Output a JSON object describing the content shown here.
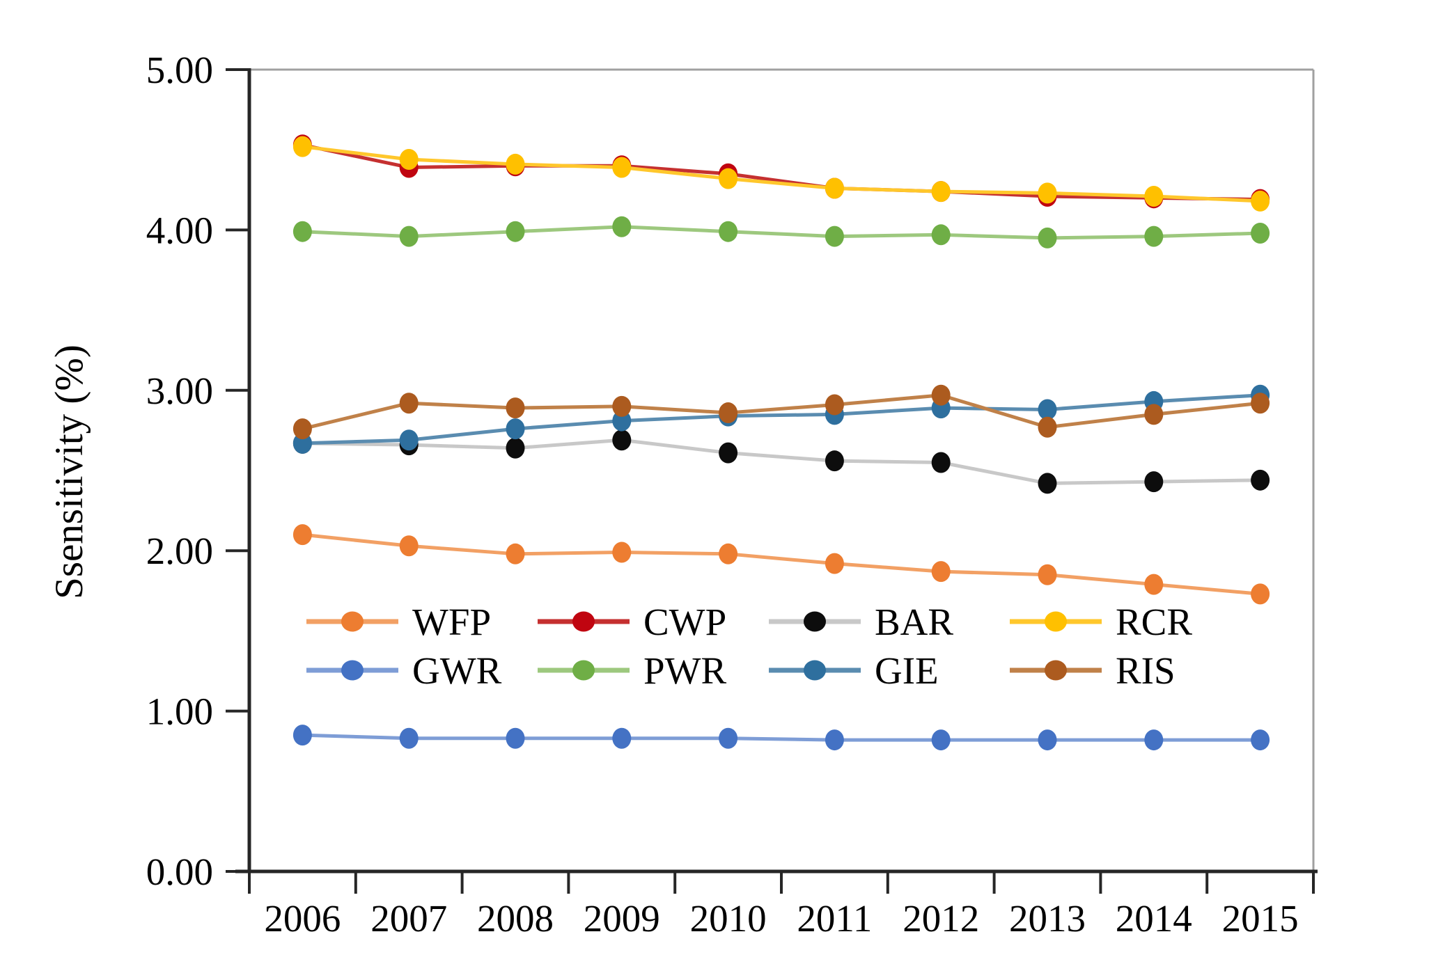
{
  "chart_data": {
    "type": "line",
    "title": "",
    "ylabel": "Ssensitivity (%)",
    "xlabel": "",
    "categories": [
      "2006",
      "2007",
      "2008",
      "2009",
      "2010",
      "2011",
      "2012",
      "2013",
      "2014",
      "2015"
    ],
    "ylim": [
      0,
      5
    ],
    "yticks": [
      0,
      1,
      2,
      3,
      4,
      5
    ],
    "ytick_labels": [
      "0.00",
      "1.00",
      "2.00",
      "3.00",
      "4.00",
      "5.00"
    ],
    "grid": false,
    "legend": {
      "position": "inside-lower-center",
      "rows": 2,
      "columns": 4,
      "order": [
        "WFP",
        "CWP",
        "BAR",
        "RCR",
        "GWR",
        "PWR",
        "GIE",
        "RIS"
      ]
    },
    "draw_order": [
      "WFP",
      "CWP",
      "RCR",
      "PWR",
      "GWR",
      "BAR",
      "GIE",
      "RIS"
    ],
    "series": [
      {
        "name": "WFP",
        "marker_color": "#ED7D31",
        "line_color": "#F2A064",
        "values": [
          2.1,
          2.03,
          1.98,
          1.99,
          1.98,
          1.92,
          1.87,
          1.85,
          1.79,
          1.73
        ]
      },
      {
        "name": "CWP",
        "marker_color": "#C00510",
        "line_color": "#C53030",
        "values": [
          4.53,
          4.39,
          4.4,
          4.4,
          4.35,
          4.26,
          4.24,
          4.21,
          4.2,
          4.19
        ]
      },
      {
        "name": "BAR",
        "marker_color": "#0D0D0D",
        "line_color": "#C8C8C8",
        "values": [
          2.67,
          2.66,
          2.64,
          2.69,
          2.61,
          2.56,
          2.55,
          2.42,
          2.43,
          2.44
        ]
      },
      {
        "name": "RCR",
        "marker_color": "#FFC000",
        "line_color": "#FFC72C",
        "values": [
          4.52,
          4.44,
          4.41,
          4.39,
          4.32,
          4.26,
          4.24,
          4.23,
          4.21,
          4.18
        ]
      },
      {
        "name": "GWR",
        "marker_color": "#4472C4",
        "line_color": "#7E9DD6",
        "values": [
          0.85,
          0.83,
          0.83,
          0.83,
          0.83,
          0.82,
          0.82,
          0.82,
          0.82,
          0.82
        ]
      },
      {
        "name": "PWR",
        "marker_color": "#6FAE46",
        "line_color": "#9DC87E",
        "values": [
          3.99,
          3.96,
          3.99,
          4.02,
          3.99,
          3.96,
          3.97,
          3.95,
          3.96,
          3.98
        ]
      },
      {
        "name": "GIE",
        "marker_color": "#2E6F9E",
        "line_color": "#5A8CB0",
        "values": [
          2.67,
          2.69,
          2.76,
          2.81,
          2.84,
          2.85,
          2.89,
          2.88,
          2.93,
          2.97
        ]
      },
      {
        "name": "RIS",
        "marker_color": "#AC5B1F",
        "line_color": "#C08149",
        "values": [
          2.76,
          2.92,
          2.89,
          2.9,
          2.86,
          2.91,
          2.97,
          2.77,
          2.85,
          2.92
        ]
      }
    ]
  }
}
